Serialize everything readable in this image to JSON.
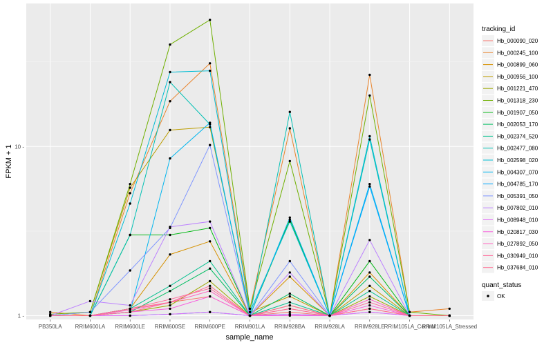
{
  "chart_data": {
    "type": "line",
    "xlabel": "sample_name",
    "ylabel": "FPKM + 1",
    "y_scale": "log10",
    "ylim": [
      0.95,
      70
    ],
    "y_ticks": [
      1,
      10
    ],
    "y_tick_labels": [
      "1 -",
      "10 -"
    ],
    "grid": true,
    "legend_position": "right",
    "categories": [
      "PB350LA",
      "RRIM600LA",
      "RRIM600LE",
      "RRIM600SE",
      "RRIM600PE",
      "RRIM901LA",
      "RRIM928BA",
      "RRIM928LA",
      "RRIM928LE",
      "RRIM105LA_Control",
      "RRIM105LA_Stressed"
    ],
    "tick_labels": [
      "PB350LA",
      "RRIM600LA",
      "RRIM600LE",
      "RRIM600SE",
      "RRIM600PE",
      "RRIM901LA",
      "RRIM928BA",
      "RRIM928LA",
      "RRIM928LE",
      "RRIM105LA_Control",
      "RRIM105LA_Stressed"
    ],
    "legend_title": "tracking_id",
    "shape_legend_title": "quant_status",
    "shape_legend_label": "OK",
    "series": [
      {
        "name": "Hb_000090_020",
        "color": "#F8766D",
        "values": [
          1.0,
          1.0,
          1.1,
          1.2,
          1.3,
          1.0,
          1.05,
          1.0,
          1.1,
          1.0,
          1.0
        ]
      },
      {
        "name": "Hb_000245_100",
        "color": "#E9842C",
        "values": [
          1.05,
          1.0,
          5.3,
          18.5,
          31.0,
          1.1,
          12.8,
          1.0,
          26.5,
          1.05,
          1.1
        ]
      },
      {
        "name": "Hb_000899_060",
        "color": "#D69100",
        "values": [
          1.0,
          1.0,
          1.1,
          2.3,
          2.75,
          1.0,
          1.7,
          1.0,
          1.8,
          1.0,
          1.0
        ]
      },
      {
        "name": "Hb_000956_100",
        "color": "#BC9D00",
        "values": [
          1.0,
          1.05,
          5.7,
          12.5,
          13.0,
          1.05,
          1.3,
          1.0,
          1.5,
          1.0,
          1.0
        ]
      },
      {
        "name": "Hb_001221_470",
        "color": "#9CA700",
        "values": [
          1.0,
          1.0,
          1.05,
          1.15,
          1.6,
          1.0,
          1.15,
          1.0,
          1.3,
          1.0,
          1.0
        ]
      },
      {
        "name": "Hb_001318_230",
        "color": "#6FB000",
        "values": [
          1.02,
          1.05,
          6.0,
          40.0,
          56.0,
          1.1,
          8.2,
          1.0,
          20.0,
          1.05,
          1.0
        ]
      },
      {
        "name": "Hb_001907_050",
        "color": "#00B813",
        "values": [
          1.0,
          1.0,
          3.0,
          3.0,
          3.3,
          1.0,
          3.7,
          1.0,
          2.1,
          1.0,
          1.0
        ]
      },
      {
        "name": "Hb_002053_170",
        "color": "#00BD61",
        "values": [
          1.0,
          1.0,
          1.05,
          1.4,
          1.9,
          1.0,
          1.35,
          1.0,
          1.7,
          1.0,
          1.0
        ]
      },
      {
        "name": "Hb_002374_520",
        "color": "#00C08E",
        "values": [
          1.0,
          1.0,
          1.1,
          1.5,
          2.1,
          1.0,
          1.2,
          1.0,
          1.4,
          1.0,
          1.0
        ]
      },
      {
        "name": "Hb_002477_080",
        "color": "#00C0B4",
        "values": [
          1.0,
          1.0,
          3.0,
          24.0,
          13.5,
          1.0,
          16.0,
          1.0,
          11.0,
          1.0,
          1.0
        ]
      },
      {
        "name": "Hb_002598_020",
        "color": "#00BDD4",
        "values": [
          1.0,
          1.0,
          4.6,
          27.5,
          28.0,
          1.05,
          3.6,
          1.0,
          11.5,
          1.0,
          1.0
        ]
      },
      {
        "name": "Hb_004307_070",
        "color": "#00B5EE",
        "values": [
          1.0,
          1.0,
          1.05,
          8.5,
          13.8,
          1.0,
          3.8,
          1.0,
          6.0,
          1.0,
          1.0
        ]
      },
      {
        "name": "Hb_004785_170",
        "color": "#00A7FF",
        "values": [
          1.0,
          1.0,
          1.0,
          1.02,
          1.05,
          1.0,
          1.02,
          1.0,
          5.8,
          1.0,
          1.0
        ]
      },
      {
        "name": "Hb_005391_050",
        "color": "#7F96FF",
        "values": [
          1.0,
          1.05,
          1.85,
          3.3,
          10.2,
          1.0,
          2.1,
          1.0,
          1.05,
          1.0,
          1.0
        ]
      },
      {
        "name": "Hb_007802_010",
        "color": "#BC81FF",
        "values": [
          1.0,
          1.22,
          1.15,
          3.35,
          3.6,
          1.0,
          1.8,
          1.0,
          2.8,
          1.0,
          1.0
        ]
      },
      {
        "name": "Hb_008948_010",
        "color": "#E26EF7",
        "values": [
          1.0,
          1.0,
          1.0,
          1.02,
          1.05,
          1.0,
          1.02,
          1.0,
          1.05,
          1.0,
          1.0
        ]
      },
      {
        "name": "Hb_020817_030",
        "color": "#F863DF",
        "values": [
          1.0,
          1.0,
          1.05,
          1.1,
          1.3,
          1.0,
          1.0,
          1.0,
          1.15,
          1.0,
          1.0
        ]
      },
      {
        "name": "Hb_027892_050",
        "color": "#FF62BF",
        "values": [
          1.0,
          1.0,
          1.08,
          1.2,
          1.4,
          1.0,
          1.1,
          1.0,
          1.25,
          1.0,
          1.0
        ]
      },
      {
        "name": "Hb_030949_010",
        "color": "#FF6A9A",
        "values": [
          1.0,
          1.0,
          1.1,
          1.25,
          1.45,
          1.0,
          1.15,
          1.0,
          1.2,
          1.0,
          1.0
        ]
      },
      {
        "name": "Hb_037684_010",
        "color": "#FF6C90",
        "values": [
          1.0,
          1.0,
          1.05,
          1.2,
          1.5,
          1.0,
          1.1,
          1.0,
          1.1,
          1.0,
          1.0
        ]
      }
    ]
  }
}
